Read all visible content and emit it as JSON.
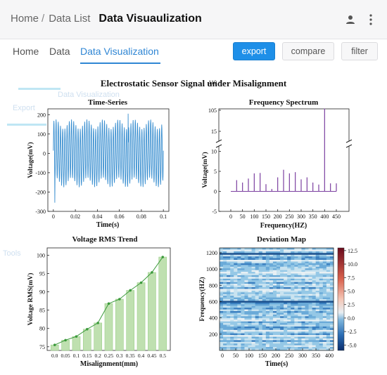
{
  "breadcrumb": {
    "items": [
      "Home",
      "Data List"
    ],
    "separator": "/",
    "current": "Data Visuaulization"
  },
  "tabs": [
    {
      "label": "Home",
      "active": false
    },
    {
      "label": "Data",
      "active": false
    },
    {
      "label": "Data Visualization",
      "active": true
    }
  ],
  "actions": {
    "export": "export",
    "compare": "compare",
    "filter": "filter"
  },
  "icons": {
    "user": "user-icon",
    "more": "more-vertical-icon"
  },
  "colors": {
    "accent": "#2f86d4",
    "export_bg": "#1e8fe8",
    "line": "#3a8fd0",
    "spectrum": "#7b3fa0",
    "bars": "#bfe0b0",
    "bar_edge": "#3c9a3c"
  },
  "figure": {
    "title": "Electrostatic Sensor Signal under Misalignment",
    "ghost_text": [
      "Data Visualization",
      "Export",
      "Tools"
    ]
  },
  "chart_data": [
    {
      "type": "line",
      "title": "Time-Series",
      "xlabel": "Time(s)",
      "ylabel": "Voltage(mV)",
      "xlim": [
        -0.005,
        0.105
      ],
      "ylim": [
        -300,
        230
      ],
      "xticks": [
        "0",
        "0.02",
        "0.04",
        "0.06",
        "0.08",
        "0.1"
      ],
      "yticks": [
        "-300",
        "-200",
        "-100",
        "0",
        "100",
        "200"
      ],
      "series": [
        {
          "x_start": 0,
          "x_end": 0.1,
          "cycles": 50,
          "amplitude": 150,
          "min": -255,
          "max": 205
        }
      ]
    },
    {
      "type": "bar",
      "title": "Frequency Spectrum",
      "xlabel": "Frequency(HZ)",
      "ylabel": "Voltage(mV)",
      "xticks": [
        "0",
        "50",
        "100",
        "150",
        "200",
        "250",
        "300",
        "350",
        "400",
        "450"
      ],
      "yticks_lower": [
        "-5",
        "0",
        "5",
        "10",
        "15"
      ],
      "yticks_upper": [
        "105",
        "110"
      ],
      "axis_break": true,
      "x": [
        25,
        50,
        75,
        100,
        125,
        150,
        175,
        200,
        225,
        250,
        275,
        300,
        325,
        350,
        375,
        400,
        425,
        450
      ],
      "values": [
        2.8,
        2.2,
        3.2,
        4.5,
        4.6,
        1.8,
        0.6,
        3.5,
        5.4,
        4.5,
        4.8,
        3.0,
        3.5,
        2.2,
        1.7,
        105.3,
        2.0,
        2.0
      ]
    },
    {
      "type": "bar",
      "title": "Voltage RMS Trend",
      "xlabel": "Misalignment(mm)",
      "ylabel": "Voltage RMS(mV)",
      "ylim": [
        74,
        102
      ],
      "yticks": [
        "75",
        "80",
        "85",
        "90",
        "95",
        "100"
      ],
      "categories": [
        "0.0",
        "0.05",
        "0.1",
        "0.15",
        "0.2",
        "0.25",
        "0.3",
        "0.35",
        "0.4",
        "0.45",
        "0.5"
      ],
      "values": [
        75.5,
        76.8,
        77.8,
        79.8,
        81.5,
        86.8,
        88.0,
        90.4,
        92.5,
        95.3,
        99.5
      ],
      "overlay_line": true
    },
    {
      "type": "heatmap",
      "title": "Deviation Map",
      "xlabel": "Time(s)",
      "ylabel": "Frequency(HZ)",
      "xticks": [
        "0",
        "50",
        "100",
        "150",
        "200",
        "250",
        "300",
        "350",
        "400"
      ],
      "yticks": [
        "200",
        "400",
        "600",
        "800",
        "1000",
        "1200"
      ],
      "colorbar_ticks": [
        "12.5",
        "10.0",
        "7.5",
        "5.0",
        "2.5",
        "0.0",
        "-2.5",
        "-5.0"
      ],
      "colorbar_range": [
        -6,
        13
      ]
    }
  ]
}
